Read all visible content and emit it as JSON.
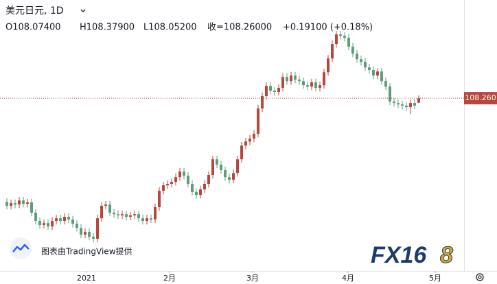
{
  "chart_data": {
    "type": "candlestick",
    "title": "美元日元, 1D",
    "ohlc_labels": [
      "O108.07400",
      "H108.37900",
      "L108.05200",
      "收=108.26000",
      "+0.19100 (+0.18%)"
    ],
    "open": [
      103.95,
      103.79,
      103.9,
      103.84,
      104.01,
      103.87,
      103.93,
      103.5,
      103.16,
      102.99,
      103.07,
      102.93,
      103.16,
      103.27,
      103.16,
      103.33,
      103.22,
      103.04,
      102.87,
      102.59,
      102.7,
      102.5,
      102.42,
      103.27,
      103.79,
      103.84,
      103.5,
      103.44,
      103.39,
      103.44,
      103.33,
      103.39,
      103.44,
      103.27,
      103.16,
      103.27,
      103.22,
      103.73,
      104.41,
      104.64,
      104.7,
      104.78,
      104.98,
      105.21,
      105.04,
      104.7,
      104.36,
      104.24,
      104.47,
      104.7,
      105.07,
      105.72,
      105.5,
      105.27,
      104.98,
      104.87,
      105.15,
      105.72,
      106.29,
      106.46,
      106.58,
      106.78,
      107.83,
      108.35,
      108.77,
      108.57,
      108.52,
      108.69,
      109.14,
      108.97,
      109.2,
      109.03,
      108.97,
      108.8,
      108.74,
      108.92,
      108.69,
      108.8,
      109.34,
      109.91,
      110.51,
      110.91,
      110.85,
      110.77,
      110.4,
      110.11,
      109.88,
      109.77,
      109.54,
      109.43,
      109.2,
      109.37,
      108.97,
      108.74,
      108.12,
      108.06,
      108.0,
      107.95,
      107.89,
      108.06,
      108.074
    ],
    "high": [
      104.1,
      104.05,
      104.05,
      104.16,
      104.16,
      104.08,
      104.08,
      103.65,
      103.31,
      103.22,
      103.22,
      103.31,
      103.42,
      103.42,
      103.48,
      103.48,
      103.37,
      103.19,
      103.02,
      102.85,
      102.85,
      102.65,
      103.42,
      103.94,
      103.99,
      103.99,
      103.65,
      103.59,
      103.59,
      103.59,
      103.54,
      103.59,
      103.59,
      103.42,
      103.42,
      103.42,
      103.88,
      104.56,
      104.79,
      104.85,
      104.93,
      105.13,
      105.36,
      105.36,
      105.19,
      104.85,
      104.51,
      104.62,
      104.85,
      105.22,
      105.87,
      105.87,
      105.65,
      105.42,
      105.13,
      105.3,
      105.87,
      106.44,
      106.61,
      106.73,
      106.93,
      107.98,
      108.5,
      108.92,
      108.92,
      108.72,
      108.84,
      109.29,
      109.29,
      109.35,
      109.35,
      109.18,
      109.12,
      108.95,
      109.07,
      109.07,
      108.95,
      109.49,
      110.06,
      110.66,
      111.06,
      111.06,
      111.0,
      110.92,
      110.55,
      110.26,
      110.03,
      109.92,
      109.69,
      109.58,
      109.52,
      109.52,
      109.12,
      108.89,
      108.27,
      108.21,
      108.15,
      108.1,
      108.21,
      108.21,
      108.379
    ],
    "low": [
      103.64,
      103.64,
      103.69,
      103.69,
      103.72,
      103.72,
      103.35,
      103.01,
      102.84,
      102.84,
      102.78,
      102.78,
      103.01,
      103.01,
      103.01,
      103.07,
      102.89,
      102.72,
      102.44,
      102.44,
      102.35,
      102.27,
      102.27,
      103.12,
      103.64,
      103.35,
      103.29,
      103.24,
      103.24,
      103.18,
      103.18,
      103.24,
      103.12,
      103.01,
      103.01,
      103.07,
      103.07,
      103.58,
      104.26,
      104.49,
      104.55,
      104.63,
      104.83,
      104.89,
      104.55,
      104.21,
      104.09,
      104.09,
      104.32,
      104.55,
      104.92,
      105.35,
      105.12,
      104.83,
      104.72,
      104.72,
      105.0,
      105.57,
      106.14,
      106.31,
      106.43,
      106.63,
      107.68,
      108.2,
      108.42,
      108.37,
      108.37,
      108.54,
      108.82,
      108.82,
      108.88,
      108.82,
      108.65,
      108.59,
      108.59,
      108.54,
      108.54,
      108.65,
      109.19,
      109.76,
      110.36,
      110.7,
      110.62,
      110.25,
      109.96,
      109.73,
      109.62,
      109.39,
      109.28,
      109.05,
      109.05,
      108.82,
      108.59,
      107.97,
      107.91,
      107.85,
      107.8,
      107.74,
      107.6,
      107.8,
      108.052
    ],
    "close": [
      103.79,
      103.9,
      103.84,
      104.01,
      103.87,
      103.93,
      103.5,
      103.16,
      102.99,
      103.07,
      102.93,
      103.16,
      103.27,
      103.16,
      103.33,
      103.22,
      103.04,
      102.87,
      102.59,
      102.7,
      102.5,
      102.42,
      103.27,
      103.79,
      103.84,
      103.5,
      103.44,
      103.39,
      103.44,
      103.33,
      103.39,
      103.44,
      103.27,
      103.16,
      103.27,
      103.22,
      103.73,
      104.41,
      104.64,
      104.7,
      104.78,
      104.98,
      105.21,
      105.04,
      104.7,
      104.36,
      104.24,
      104.47,
      104.7,
      105.07,
      105.72,
      105.5,
      105.27,
      104.98,
      104.87,
      105.15,
      105.72,
      106.29,
      106.46,
      106.58,
      106.78,
      107.83,
      108.35,
      108.77,
      108.57,
      108.52,
      108.69,
      109.14,
      108.97,
      109.2,
      109.03,
      108.97,
      108.8,
      108.74,
      108.92,
      108.69,
      108.8,
      109.34,
      109.91,
      110.51,
      110.91,
      110.85,
      110.77,
      110.4,
      110.11,
      109.88,
      109.77,
      109.54,
      109.43,
      109.2,
      109.37,
      108.97,
      108.74,
      108.12,
      108.06,
      108.0,
      107.95,
      107.89,
      108.06,
      107.95,
      108.26
    ],
    "xlim": [
      -1.67,
      111
    ],
    "ylim": [
      101.08,
      112.34
    ],
    "xticks": [
      {
        "value": 19.33,
        "label": "2021"
      },
      {
        "value": 39.5,
        "label": "2月"
      },
      {
        "value": 59.67,
        "label": "3月"
      },
      {
        "value": 82.83,
        "label": "4月"
      },
      {
        "value": 104,
        "label": "5月"
      }
    ],
    "last_price": {
      "value": 108.26,
      "label": "108.260"
    },
    "up_color": "#b8463a",
    "down_color": "#5d9c7c"
  },
  "watermark": "图表由TradingView提供",
  "logo": {
    "main": "FX16",
    "accent": "8"
  }
}
